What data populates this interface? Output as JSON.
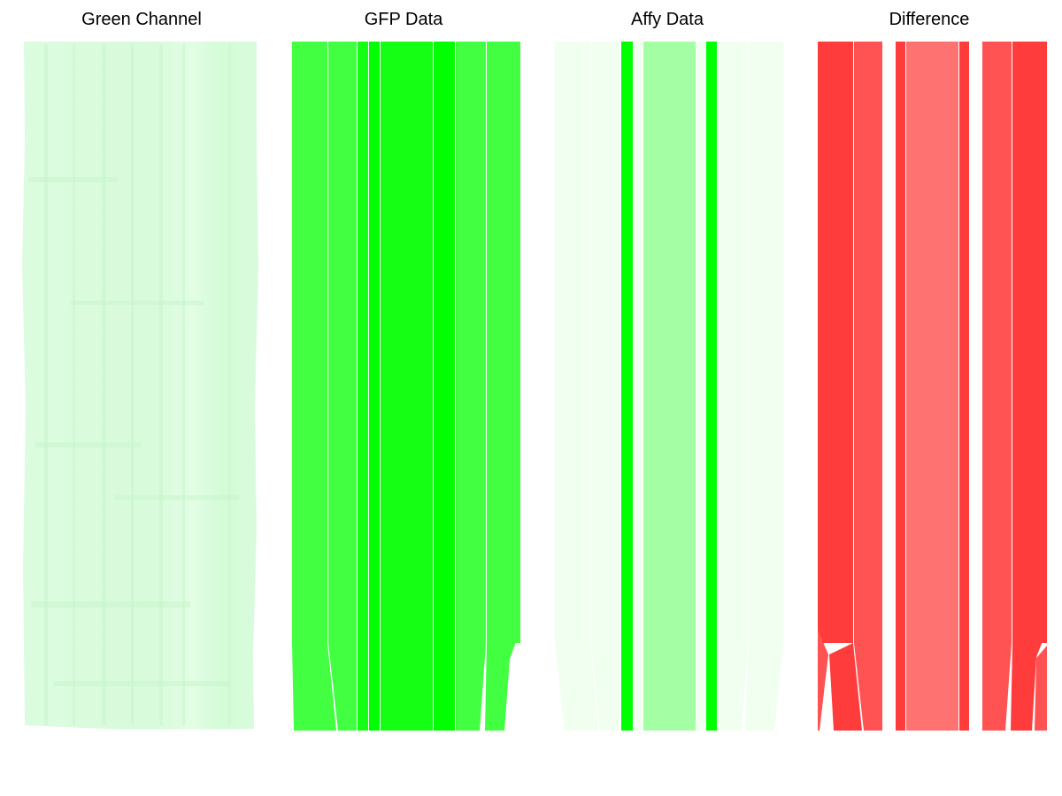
{
  "panels": [
    {
      "title": "Green Channel"
    },
    {
      "title": "GFP Data"
    },
    {
      "title": "Affy Data"
    },
    {
      "title": "Difference"
    }
  ],
  "colors": {
    "background": "#ffffff",
    "green_channel_base": "#d9fbdc",
    "green_channel_light": "#e6fde8",
    "green_channel_streak": "#c8f5cc",
    "gfp_mid": "#42ff42",
    "gfp_bright": "#14ff14",
    "gfp_pure": "#00ff00",
    "affy_pale": "#f0fff0",
    "affy_light": "#a4ffa4",
    "affy_pure": "#00ff00",
    "diff_strong": "#ff3c3c",
    "diff_mid": "#ff5252",
    "diff_light": "#ff7272"
  }
}
